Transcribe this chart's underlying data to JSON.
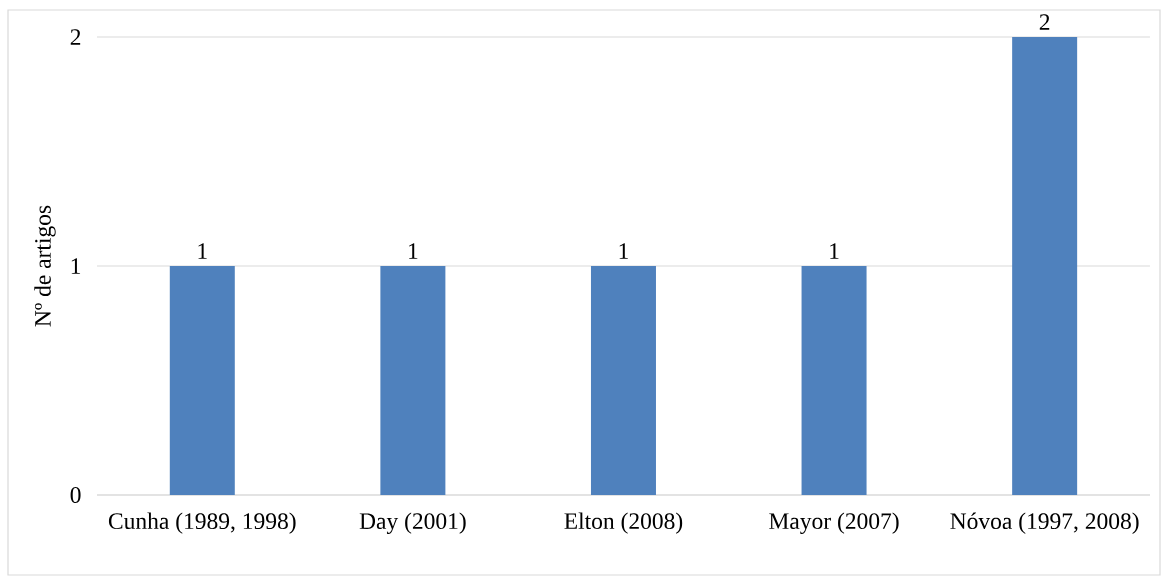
{
  "chart_data": {
    "type": "bar",
    "categories": [
      "Cunha (1989, 1998)",
      "Day (2001)",
      "Elton (2008)",
      "Mayor (2007)",
      "Nóvoa (1997, 2008)"
    ],
    "values": [
      1,
      1,
      1,
      1,
      2
    ],
    "color": "#4f81bd",
    "ylabel": "Nº de artigos",
    "ylim": [
      0,
      2
    ],
    "yticks": [
      0,
      1,
      2
    ],
    "grid": "y",
    "data_labels": true
  }
}
